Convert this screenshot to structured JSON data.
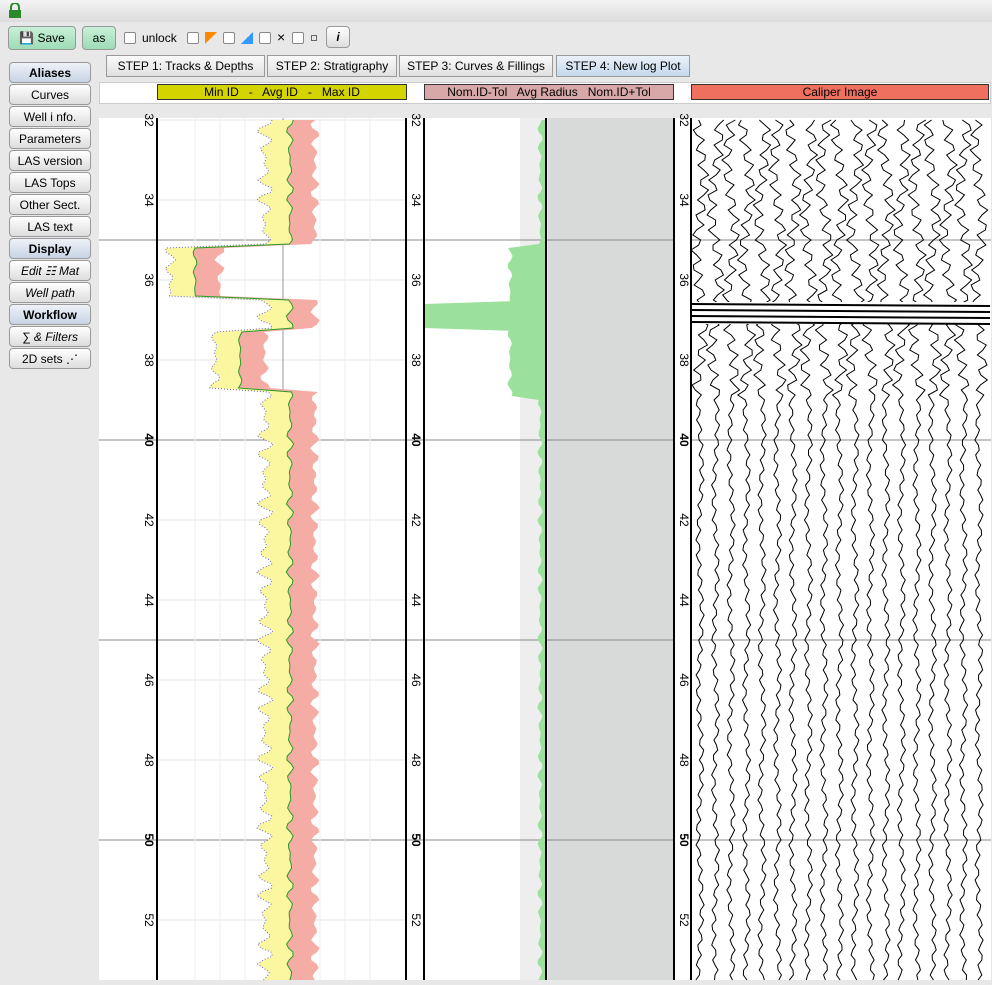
{
  "toolbar": {
    "save": "Save",
    "as": "as",
    "unlock": "unlock",
    "info": "i"
  },
  "sidebar": [
    "Aliases",
    "Curves",
    "Well i nfo.",
    "Parameters",
    "LAS version",
    "LAS Tops",
    "Other Sect.",
    "LAS text",
    "Display",
    "Edit ☷ Mat",
    "Well path",
    "Workflow",
    "∑ & Filters",
    "2D sets ⋰"
  ],
  "tabs": [
    "STEP 1: Tracks & Depths",
    "STEP 2: Stratigraphy",
    "STEP 3: Curves & Fillings",
    "STEP 4: New log Plot"
  ],
  "track_headers": [
    "Min ID   -   Avg ID   -   Max ID",
    "Nom.ID-Tol   Avg Radius   Nom.ID+Tol",
    "Caliper Image"
  ],
  "depth_ticks": [
    32,
    34,
    36,
    38,
    40,
    42,
    44,
    46,
    48,
    50,
    52
  ]
}
